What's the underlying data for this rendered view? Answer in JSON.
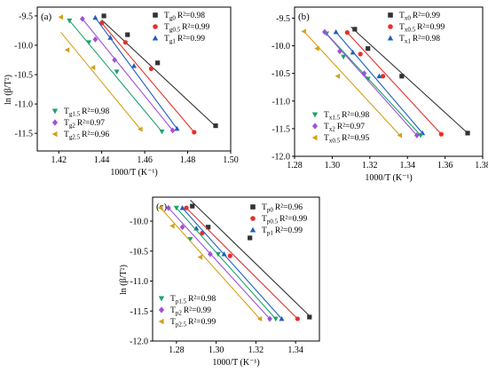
{
  "chart_data": [
    {
      "type": "scatter",
      "panel_label": "(a)",
      "xlabel": "1000/T (K⁻¹)",
      "ylabel": "ln (β/T²)",
      "xlim": [
        1.41,
        1.5
      ],
      "ylim": [
        -11.8,
        -9.35
      ],
      "xticks": [
        "1.42",
        "1.44",
        "1.46",
        "1.48",
        "1.50"
      ],
      "yticks": [
        "-9.5",
        "-10.0",
        "-10.5",
        "-11.0",
        "-11.5"
      ],
      "series": [
        {
          "name": "T",
          "sub": "g0",
          "r2": "R²=0.98",
          "color": "#333333",
          "marker": "square",
          "x": [
            1.441,
            1.452,
            1.466,
            1.493
          ],
          "y": [
            -9.5,
            -9.82,
            -10.3,
            -11.37
          ],
          "fit": [
            [
              1.44,
              -9.57
            ],
            [
              1.493,
              -11.38
            ]
          ]
        },
        {
          "name": "T",
          "sub": "g0.5",
          "r2": "R²=0.99",
          "color": "#e8302a",
          "marker": "circle",
          "x": [
            1.44,
            1.451,
            1.463,
            1.483
          ],
          "y": [
            -9.62,
            -9.95,
            -10.4,
            -11.48
          ],
          "fit": [
            [
              1.44,
              -9.62
            ],
            [
              1.483,
              -11.48
            ]
          ]
        },
        {
          "name": "T",
          "sub": "g1",
          "r2": "R²=0.99",
          "color": "#1f5fbf",
          "marker": "triangle-up",
          "x": [
            1.437,
            1.444,
            1.455,
            1.475
          ],
          "y": [
            -9.53,
            -9.87,
            -10.35,
            -11.42
          ],
          "fit": [
            [
              1.437,
              -9.53
            ],
            [
              1.475,
              -11.42
            ]
          ]
        },
        {
          "name": "T",
          "sub": "g1.5",
          "r2": "R²=0.98",
          "color": "#1aa36a",
          "marker": "triangle-down",
          "x": [
            1.425,
            1.434,
            1.447,
            1.468
          ],
          "y": [
            -9.58,
            -9.95,
            -10.45,
            -11.47
          ],
          "fit": [
            [
              1.425,
              -9.58
            ],
            [
              1.468,
              -11.47
            ]
          ]
        },
        {
          "name": "T",
          "sub": "g2",
          "r2": "R²=0.97",
          "color": "#a050d8",
          "marker": "diamond",
          "x": [
            1.431,
            1.437,
            1.446,
            1.473
          ],
          "y": [
            -9.55,
            -9.9,
            -10.25,
            -11.45
          ],
          "fit": [
            [
              1.431,
              -9.55
            ],
            [
              1.473,
              -11.45
            ]
          ]
        },
        {
          "name": "T",
          "sub": "g2.5",
          "r2": "R²=0.96",
          "color": "#d4a017",
          "marker": "triangle-left",
          "x": [
            1.421,
            1.424,
            1.436,
            1.458
          ],
          "y": [
            -9.52,
            -10.08,
            -10.38,
            -11.43
          ],
          "fit": [
            [
              1.421,
              -9.78
            ],
            [
              1.458,
              -11.43
            ]
          ]
        }
      ]
    },
    {
      "type": "scatter",
      "panel_label": "(b)",
      "xlabel": "1000/T (K⁻¹)",
      "ylabel": "",
      "xlim": [
        1.28,
        1.38
      ],
      "ylim": [
        -12.0,
        -9.3
      ],
      "xticks": [
        "1.28",
        "1.30",
        "1.32",
        "1.34",
        "1.36",
        "1.38"
      ],
      "yticks": [
        "-9.5",
        "-10.0",
        "-10.5",
        "-11.0",
        "-11.5",
        "-12.0"
      ],
      "series": [
        {
          "name": "T",
          "sub": "x0",
          "r2": "R²=0.99",
          "color": "#333333",
          "marker": "square",
          "x": [
            1.312,
            1.319,
            1.337,
            1.372
          ],
          "y": [
            -9.7,
            -10.05,
            -10.55,
            -11.58
          ],
          "fit": [
            [
              1.31,
              -9.66
            ],
            [
              1.372,
              -11.58
            ]
          ]
        },
        {
          "name": "T",
          "sub": "x0.5",
          "r2": "R²=0.99",
          "color": "#e8302a",
          "marker": "circle",
          "x": [
            1.308,
            1.315,
            1.327,
            1.358
          ],
          "y": [
            -9.76,
            -10.15,
            -10.55,
            -11.6
          ],
          "fit": [
            [
              1.308,
              -9.76
            ],
            [
              1.358,
              -11.6
            ]
          ]
        },
        {
          "name": "T",
          "sub": "x1",
          "r2": "R²=0.98",
          "color": "#1f5fbf",
          "marker": "triangle-up",
          "x": [
            1.302,
            1.311,
            1.325,
            1.348
          ],
          "y": [
            -9.75,
            -10.12,
            -10.55,
            -11.58
          ],
          "fit": [
            [
              1.302,
              -9.75
            ],
            [
              1.348,
              -11.58
            ]
          ]
        },
        {
          "name": "T",
          "sub": "x1.5",
          "r2": "R²=0.98",
          "color": "#1aa36a",
          "marker": "triangle-down",
          "x": [
            1.297,
            1.306,
            1.319,
            1.347
          ],
          "y": [
            -9.78,
            -10.2,
            -10.6,
            -11.62
          ],
          "fit": [
            [
              1.297,
              -9.78
            ],
            [
              1.347,
              -11.62
            ]
          ]
        },
        {
          "name": "T",
          "sub": "x2",
          "r2": "R²=0.97",
          "color": "#a050d8",
          "marker": "diamond",
          "x": [
            1.296,
            1.304,
            1.317,
            1.345
          ],
          "y": [
            -9.75,
            -10.1,
            -10.5,
            -11.62
          ],
          "fit": [
            [
              1.296,
              -9.75
            ],
            [
              1.345,
              -11.62
            ]
          ]
        },
        {
          "name": "T",
          "sub": "x0.5",
          "r2": "R²=0.95",
          "color": "#d4a017",
          "marker": "triangle-left",
          "x": [
            1.285,
            1.292,
            1.303,
            1.336
          ],
          "y": [
            -9.74,
            -10.05,
            -10.55,
            -11.62
          ],
          "fit": [
            [
              1.285,
              -9.74
            ],
            [
              1.336,
              -11.62
            ]
          ]
        }
      ]
    },
    {
      "type": "scatter",
      "panel_label": "(c)",
      "xlabel": "1000/T (K⁻¹)",
      "ylabel": "ln (β/T²)",
      "xlim": [
        1.268,
        1.352
      ],
      "ylim": [
        -12.0,
        -9.6
      ],
      "xticks": [
        "1.28",
        "1.30",
        "1.32",
        "1.34"
      ],
      "yticks": [
        "-10.0",
        "-10.5",
        "-11.0",
        "-11.5",
        "-12.0"
      ],
      "series": [
        {
          "name": "T",
          "sub": "p0",
          "r2": "R²=0.96",
          "color": "#333333",
          "marker": "square",
          "x": [
            1.288,
            1.296,
            1.317,
            1.347
          ],
          "y": [
            -9.75,
            -10.1,
            -10.28,
            -11.6
          ],
          "fit": [
            [
              1.287,
              -9.65
            ],
            [
              1.347,
              -11.58
            ]
          ]
        },
        {
          "name": "T",
          "sub": "p0.5",
          "r2": "R²=0.99",
          "color": "#e8302a",
          "marker": "circle",
          "x": [
            1.285,
            1.293,
            1.307,
            1.341
          ],
          "y": [
            -9.78,
            -10.2,
            -10.58,
            -11.63
          ],
          "fit": [
            [
              1.285,
              -9.78
            ],
            [
              1.341,
              -11.63
            ]
          ]
        },
        {
          "name": "T",
          "sub": "p1",
          "r2": "R²=0.99",
          "color": "#1f5fbf",
          "marker": "triangle-up",
          "x": [
            1.283,
            1.29,
            1.304,
            1.333
          ],
          "y": [
            -9.78,
            -10.12,
            -10.55,
            -11.63
          ],
          "fit": [
            [
              1.283,
              -9.78
            ],
            [
              1.333,
              -11.63
            ]
          ]
        },
        {
          "name": "T",
          "sub": "p1.5",
          "r2": "R²=0.98",
          "color": "#1aa36a",
          "marker": "triangle-down",
          "x": [
            1.28,
            1.287,
            1.301,
            1.33
          ],
          "y": [
            -9.78,
            -10.3,
            -10.55,
            -11.63
          ],
          "fit": [
            [
              1.28,
              -9.78
            ],
            [
              1.33,
              -11.63
            ]
          ]
        },
        {
          "name": "T",
          "sub": "p2",
          "r2": "R²=0.99",
          "color": "#a050d8",
          "marker": "diamond",
          "x": [
            1.276,
            1.283,
            1.297,
            1.327
          ],
          "y": [
            -9.78,
            -10.1,
            -10.55,
            -11.63
          ],
          "fit": [
            [
              1.276,
              -9.78
            ],
            [
              1.327,
              -11.63
            ]
          ]
        },
        {
          "name": "T",
          "sub": "p2.5",
          "r2": "R²=0.99",
          "color": "#d4a017",
          "marker": "triangle-left",
          "x": [
            1.272,
            1.278,
            1.292,
            1.322
          ],
          "y": [
            -9.78,
            -10.08,
            -10.6,
            -11.63
          ],
          "fit": [
            [
              1.272,
              -9.78
            ],
            [
              1.322,
              -11.63
            ]
          ]
        }
      ]
    }
  ]
}
